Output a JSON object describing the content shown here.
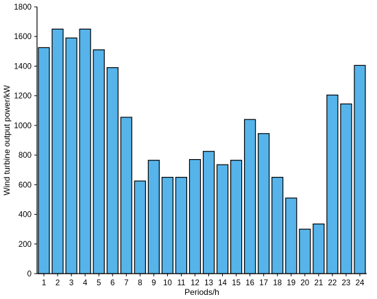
{
  "chart_data": {
    "type": "bar",
    "categories": [
      "1",
      "2",
      "3",
      "4",
      "5",
      "6",
      "7",
      "8",
      "9",
      "10",
      "11",
      "12",
      "13",
      "14",
      "15",
      "16",
      "17",
      "18",
      "19",
      "20",
      "21",
      "22",
      "23",
      "24"
    ],
    "values": [
      1525,
      1650,
      1590,
      1650,
      1510,
      1390,
      1055,
      625,
      765,
      650,
      650,
      770,
      825,
      735,
      765,
      1040,
      945,
      650,
      510,
      300,
      335,
      1205,
      1145,
      1405
    ],
    "xlabel": "Periods/h",
    "ylabel": "Wind turbine output power/kW",
    "ylim": [
      0,
      1800
    ],
    "yticks": [
      0,
      200,
      400,
      600,
      800,
      1000,
      1200,
      1400,
      1600,
      1800
    ],
    "grid": false,
    "colors": {
      "bar_fill": "#56b4ea",
      "bar_stroke": "#000000",
      "axis": "#000000"
    }
  }
}
